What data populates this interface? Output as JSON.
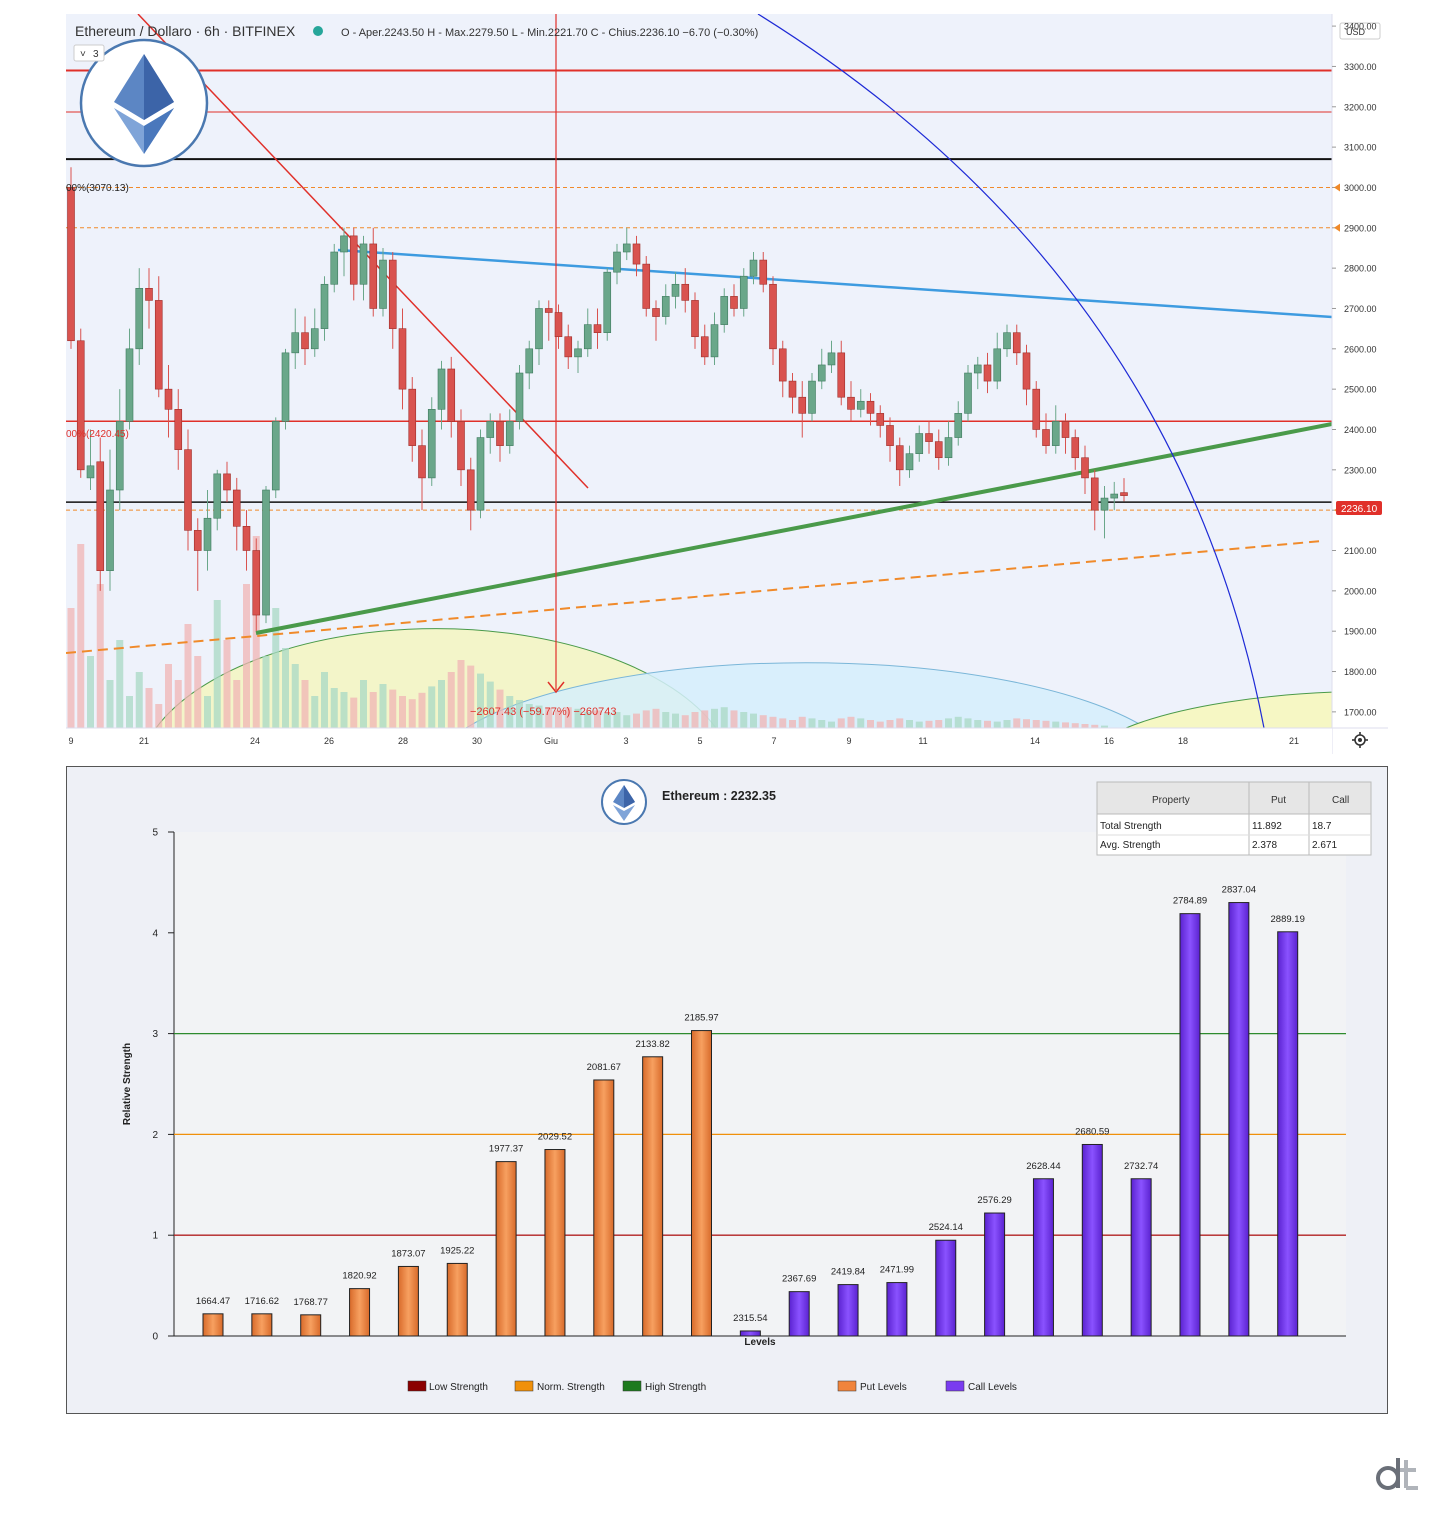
{
  "header": {
    "symbol": "Ethereum / Dollaro · 6h · BITFINEX",
    "ohlc": "O - Aper.2243.50  H - Max.2279.50  L - Min.2221.70  C - Chius.2236.10  −6.70 (−0.30%)",
    "indicator_count": "3",
    "currency": "USD",
    "last_price": "2236.10"
  },
  "colors": {
    "up": "#6aa78a",
    "down": "#d9534f",
    "red_line": "#e0302a",
    "blue_trend": "#3d9be0",
    "green_trend": "#4a9a4a",
    "orange_dash": "#f08a2a",
    "arc_blue": "#1e2ad6",
    "put_bar": "#f0843c",
    "call_bar": "#7a3cf0"
  },
  "top_chart": {
    "fib_labels": [
      "00%(3070.13)",
      "00%(2420.45)"
    ],
    "measure_label": "−2607.43 (−59.77%) −260743",
    "y_ticks": [
      "3400.00",
      "3300.00",
      "3200.00",
      "3100.00",
      "3000.00",
      "2900.00",
      "2800.00",
      "2700.00",
      "2600.00",
      "2500.00",
      "2400.00",
      "2300.00",
      "2200.00",
      "2100.00",
      "2000.00",
      "1900.00",
      "1800.00",
      "1700.00"
    ],
    "x_ticks": [
      "9",
      "21",
      "24",
      "26",
      "28",
      "30",
      "Giu",
      "3",
      "5",
      "7",
      "9",
      "11",
      "14",
      "16",
      "18",
      "21"
    ]
  },
  "chart_data": [
    {
      "type": "candlestick",
      "title": "Ethereum / Dollaro · 6h · BITFINEX",
      "ylim": [
        1660,
        3430
      ],
      "horizontal_levels": [
        3290,
        3070.13,
        3000,
        2900,
        2420.45,
        2220,
        2200
      ],
      "candles": [
        [
          3000,
          2620,
          3050,
          2600
        ],
        [
          2620,
          2300,
          2650,
          2280
        ],
        [
          2280,
          2310,
          2400,
          2250
        ],
        [
          2320,
          2050,
          2380,
          2000
        ],
        [
          2050,
          2250,
          2350,
          2000
        ],
        [
          2250,
          2420,
          2500,
          2200
        ],
        [
          2420,
          2600,
          2650,
          2400
        ],
        [
          2600,
          2750,
          2800,
          2560
        ],
        [
          2750,
          2720,
          2800,
          2650
        ],
        [
          2720,
          2500,
          2780,
          2480
        ],
        [
          2500,
          2450,
          2560,
          2380
        ],
        [
          2450,
          2350,
          2500,
          2300
        ],
        [
          2350,
          2150,
          2400,
          2100
        ],
        [
          2150,
          2100,
          2180,
          2000
        ],
        [
          2100,
          2180,
          2250,
          2050
        ],
        [
          2180,
          2290,
          2300,
          2150
        ],
        [
          2290,
          2250,
          2320,
          2220
        ],
        [
          2250,
          2160,
          2280,
          2100
        ],
        [
          2160,
          2100,
          2200,
          2050
        ],
        [
          2100,
          1940,
          2130,
          1900
        ],
        [
          1940,
          2250,
          2260,
          1920
        ],
        [
          2250,
          2420,
          2430,
          2230
        ],
        [
          2420,
          2590,
          2600,
          2400
        ],
        [
          2590,
          2640,
          2700,
          2550
        ],
        [
          2640,
          2600,
          2680,
          2560
        ],
        [
          2600,
          2650,
          2700,
          2580
        ],
        [
          2650,
          2760,
          2780,
          2620
        ],
        [
          2760,
          2840,
          2860,
          2740
        ],
        [
          2840,
          2880,
          2900,
          2780
        ],
        [
          2880,
          2760,
          2900,
          2720
        ],
        [
          2760,
          2860,
          2880,
          2720
        ],
        [
          2860,
          2700,
          2900,
          2680
        ],
        [
          2700,
          2820,
          2850,
          2680
        ],
        [
          2820,
          2650,
          2840,
          2600
        ],
        [
          2650,
          2500,
          2700,
          2450
        ],
        [
          2500,
          2360,
          2530,
          2320
        ],
        [
          2360,
          2280,
          2400,
          2200
        ],
        [
          2280,
          2450,
          2480,
          2260
        ],
        [
          2450,
          2550,
          2570,
          2400
        ],
        [
          2550,
          2420,
          2580,
          2380
        ],
        [
          2420,
          2300,
          2450,
          2260
        ],
        [
          2300,
          2200,
          2330,
          2150
        ],
        [
          2200,
          2380,
          2400,
          2180
        ],
        [
          2380,
          2420,
          2440,
          2340
        ],
        [
          2420,
          2360,
          2440,
          2320
        ],
        [
          2360,
          2420,
          2450,
          2340
        ],
        [
          2420,
          2540,
          2560,
          2400
        ],
        [
          2540,
          2600,
          2620,
          2500
        ],
        [
          2600,
          2700,
          2720,
          2560
        ],
        [
          2700,
          2690,
          2720,
          2620
        ],
        [
          2690,
          2630,
          2710,
          2600
        ],
        [
          2630,
          2580,
          2660,
          2550
        ],
        [
          2580,
          2600,
          2620,
          2540
        ],
        [
          2600,
          2660,
          2700,
          2580
        ],
        [
          2660,
          2640,
          2700,
          2600
        ],
        [
          2640,
          2790,
          2800,
          2620
        ],
        [
          2790,
          2840,
          2860,
          2760
        ],
        [
          2840,
          2860,
          2900,
          2820
        ],
        [
          2860,
          2810,
          2880,
          2780
        ],
        [
          2810,
          2700,
          2830,
          2680
        ],
        [
          2700,
          2680,
          2720,
          2620
        ],
        [
          2680,
          2730,
          2760,
          2660
        ],
        [
          2730,
          2760,
          2790,
          2700
        ],
        [
          2760,
          2720,
          2800,
          2690
        ],
        [
          2720,
          2630,
          2740,
          2600
        ],
        [
          2630,
          2580,
          2660,
          2560
        ],
        [
          2580,
          2660,
          2690,
          2560
        ],
        [
          2660,
          2730,
          2750,
          2640
        ],
        [
          2730,
          2700,
          2760,
          2680
        ],
        [
          2700,
          2780,
          2800,
          2680
        ],
        [
          2780,
          2820,
          2840,
          2760
        ],
        [
          2820,
          2760,
          2840,
          2740
        ],
        [
          2760,
          2600,
          2780,
          2560
        ],
        [
          2600,
          2520,
          2620,
          2480
        ],
        [
          2520,
          2480,
          2540,
          2440
        ],
        [
          2480,
          2440,
          2520,
          2380
        ],
        [
          2440,
          2520,
          2540,
          2420
        ],
        [
          2520,
          2560,
          2600,
          2500
        ],
        [
          2560,
          2590,
          2620,
          2540
        ],
        [
          2590,
          2480,
          2620,
          2460
        ],
        [
          2480,
          2450,
          2520,
          2420
        ],
        [
          2450,
          2470,
          2500,
          2430
        ],
        [
          2470,
          2440,
          2490,
          2410
        ],
        [
          2440,
          2410,
          2460,
          2380
        ],
        [
          2410,
          2360,
          2430,
          2320
        ],
        [
          2360,
          2300,
          2380,
          2260
        ],
        [
          2300,
          2340,
          2360,
          2280
        ],
        [
          2340,
          2390,
          2410,
          2320
        ],
        [
          2390,
          2370,
          2420,
          2340
        ],
        [
          2370,
          2330,
          2400,
          2300
        ],
        [
          2330,
          2380,
          2420,
          2310
        ],
        [
          2380,
          2440,
          2470,
          2360
        ],
        [
          2440,
          2540,
          2560,
          2420
        ],
        [
          2540,
          2560,
          2580,
          2500
        ],
        [
          2560,
          2520,
          2590,
          2490
        ],
        [
          2520,
          2600,
          2640,
          2500
        ],
        [
          2600,
          2640,
          2660,
          2580
        ],
        [
          2640,
          2590,
          2660,
          2560
        ],
        [
          2590,
          2500,
          2610,
          2460
        ],
        [
          2500,
          2400,
          2520,
          2380
        ],
        [
          2400,
          2360,
          2440,
          2340
        ],
        [
          2360,
          2420,
          2460,
          2340
        ],
        [
          2420,
          2380,
          2440,
          2340
        ],
        [
          2380,
          2330,
          2400,
          2300
        ],
        [
          2330,
          2280,
          2360,
          2240
        ],
        [
          2280,
          2200,
          2300,
          2150
        ],
        [
          2200,
          2230,
          2260,
          2130
        ],
        [
          2230,
          2240,
          2270,
          2200
        ],
        [
          2243.5,
          2236.1,
          2279.5,
          2221.7
        ]
      ],
      "volume": [
        150,
        230,
        90,
        180,
        60,
        110,
        40,
        70,
        50,
        30,
        80,
        60,
        130,
        90,
        40,
        160,
        110,
        60,
        180,
        240,
        90,
        150,
        100,
        80,
        60,
        40,
        70,
        50,
        45,
        38,
        60,
        45,
        55,
        48,
        40,
        36,
        44,
        52,
        60,
        70,
        85,
        78,
        68,
        58,
        48,
        40,
        35,
        30,
        28,
        25,
        22,
        26,
        24,
        20,
        22,
        18,
        20,
        16,
        18,
        22,
        24,
        20,
        18,
        16,
        20,
        22,
        24,
        26,
        22,
        20,
        18,
        16,
        14,
        12,
        10,
        14,
        12,
        10,
        8,
        12,
        14,
        12,
        10,
        8,
        10,
        12,
        10,
        8,
        9,
        10,
        12,
        14,
        12,
        10,
        9,
        8,
        10,
        12,
        11,
        10,
        9,
        8,
        7,
        6,
        5,
        4,
        3
      ]
    },
    {
      "type": "bar",
      "title": "Ethereum : 2232.35",
      "xlabel": "Levels",
      "ylabel": "Relative Strength",
      "ylim": [
        0,
        5
      ],
      "yticks": [
        "0",
        "1",
        "2",
        "3",
        "4",
        "5"
      ],
      "reference_lines": [
        {
          "name": "Low Strength",
          "value": 1,
          "color": "#b22222"
        },
        {
          "name": "Norm. Strength",
          "value": 2,
          "color": "#f0900a"
        },
        {
          "name": "High Strength",
          "value": 3,
          "color": "#2e8b2e"
        }
      ],
      "categories": [
        "1664.47",
        "1716.62",
        "1768.77",
        "1820.92",
        "1873.07",
        "1925.22",
        "1977.37",
        "2029.52",
        "2081.67",
        "2133.82",
        "2185.97",
        "2315.54",
        "2367.69",
        "2419.84",
        "2471.99",
        "2524.14",
        "2576.29",
        "2628.44",
        "2680.59",
        "2732.74",
        "2784.89",
        "2837.04",
        "2889.19"
      ],
      "series": [
        {
          "name": "Put Levels",
          "values": [
            0.22,
            0.22,
            0.21,
            0.47,
            0.69,
            0.72,
            1.73,
            1.85,
            2.54,
            2.77,
            3.03,
            null,
            null,
            null,
            null,
            null,
            null,
            null,
            null,
            null,
            null,
            null,
            null
          ]
        },
        {
          "name": "Call Levels",
          "values": [
            null,
            null,
            null,
            null,
            null,
            null,
            null,
            null,
            null,
            null,
            null,
            0.05,
            0.44,
            0.51,
            0.53,
            0.95,
            1.22,
            1.56,
            1.9,
            1.56,
            4.19,
            4.3,
            4.01
          ]
        }
      ],
      "legend": [
        "Low Strength",
        "Norm. Strength",
        "High Strength",
        "Put Levels",
        "Call Levels"
      ]
    }
  ],
  "strength_table": {
    "headers": [
      "Property",
      "Put",
      "Call"
    ],
    "rows": [
      [
        "Total Strength",
        "11.892",
        "18.7"
      ],
      [
        "Avg. Strength",
        "2.378",
        "2.671"
      ]
    ]
  }
}
